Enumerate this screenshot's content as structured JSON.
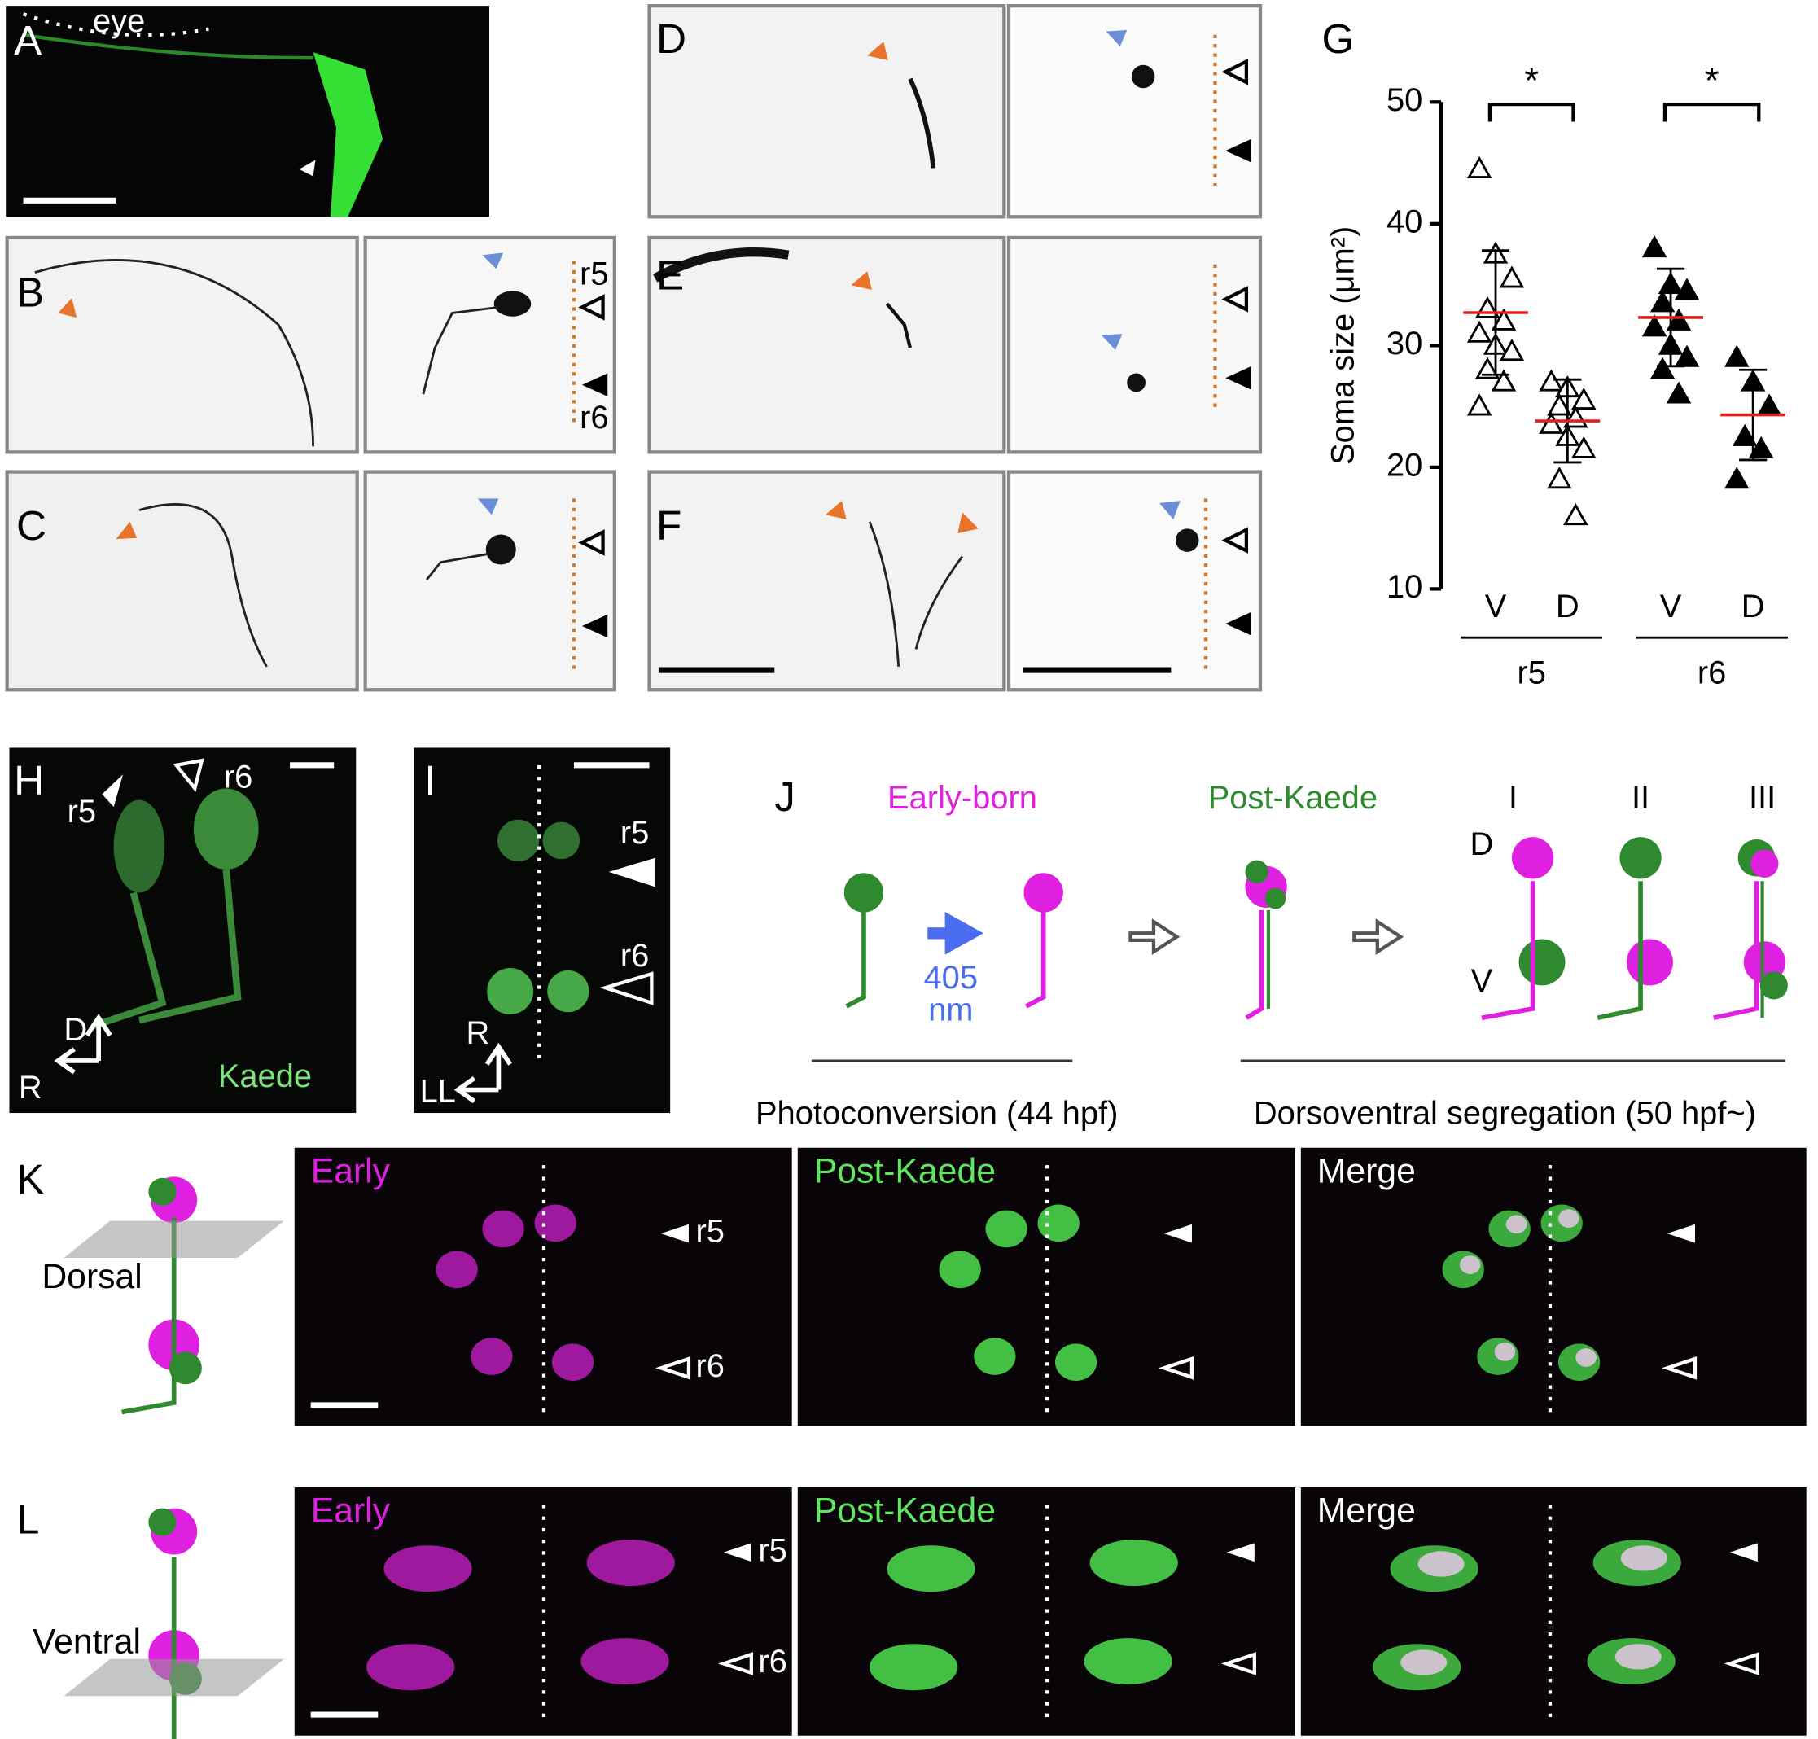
{
  "panels": {
    "A": {
      "label": "A",
      "annotation": "eye"
    },
    "B": {
      "label": "B",
      "marks": [
        "r5",
        "r6"
      ]
    },
    "C": {
      "label": "C"
    },
    "D": {
      "label": "D"
    },
    "E": {
      "label": "E"
    },
    "F": {
      "label": "F"
    },
    "G": {
      "label": "G",
      "chart_data": {
        "type": "scatter",
        "ylabel": "Soma size (μm²)",
        "ylim": [
          10,
          50
        ],
        "yticks": [
          10,
          20,
          30,
          40,
          50
        ],
        "groups": [
          {
            "name": "r5",
            "significance": "*",
            "series": [
              {
                "category": "V",
                "filled": false,
                "mean": 32.7,
                "sd": 5.1,
                "values": [
                  44.5,
                  37.5,
                  35.5,
                  33,
                  32,
                  31,
                  30,
                  29.5,
                  28,
                  27,
                  25
                ]
              },
              {
                "category": "D",
                "filled": false,
                "mean": 23.8,
                "sd": 3.4,
                "values": [
                  27,
                  26.5,
                  25.5,
                  25,
                  24,
                  23.5,
                  22.5,
                  21.5,
                  19,
                  16
                ]
              }
            ]
          },
          {
            "name": "r6",
            "significance": "*",
            "series": [
              {
                "category": "V",
                "filled": true,
                "mean": 32.3,
                "sd": 4.0,
                "values": [
                  38,
                  35,
                  34.5,
                  33.5,
                  32,
                  31.5,
                  30,
                  29,
                  28,
                  26
                ]
              },
              {
                "category": "D",
                "filled": true,
                "mean": 24.3,
                "sd": 3.7,
                "values": [
                  29,
                  27,
                  25,
                  22.5,
                  21.5,
                  19
                ]
              }
            ]
          }
        ]
      }
    },
    "H": {
      "label": "H",
      "marks": [
        "r5",
        "r6"
      ],
      "axes": [
        "D",
        "R"
      ],
      "caption": "Kaede"
    },
    "I": {
      "label": "I",
      "marks": [
        "r5",
        "r6"
      ],
      "axes": [
        "R",
        "LL"
      ]
    },
    "J": {
      "label": "J",
      "early": "Early-born",
      "post": "Post-Kaede",
      "wavelength": "405",
      "unit": "nm",
      "types": [
        "I",
        "II",
        "III"
      ],
      "dorsal": "D",
      "ventral": "V",
      "step1": "Photoconversion (44 hpf)",
      "step2": "Dorsoventral segregation (50 hpf~)"
    },
    "K": {
      "label": "K",
      "plane": "Dorsal",
      "channels": [
        "Early",
        "Post-Kaede",
        "Merge"
      ],
      "marks": [
        "r5",
        "r6"
      ]
    },
    "L": {
      "label": "L",
      "plane": "Ventral",
      "channels": [
        "Early",
        "Post-Kaede",
        "Merge"
      ],
      "marks": [
        "r5",
        "r6"
      ]
    }
  }
}
